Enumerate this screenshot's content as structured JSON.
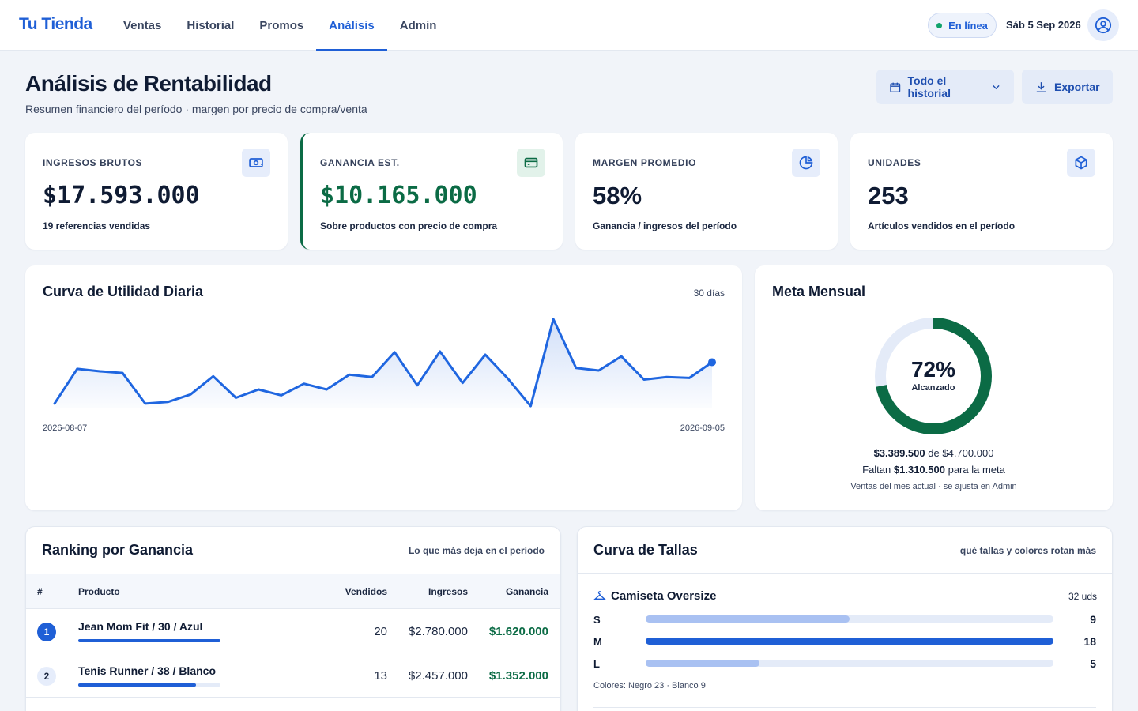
{
  "header": {
    "brand": "Tu Tienda",
    "nav": [
      {
        "label": "Ventas"
      },
      {
        "label": "Historial"
      },
      {
        "label": "Promos"
      },
      {
        "label": "Análisis"
      },
      {
        "label": "Admin"
      }
    ],
    "status": "En línea",
    "date": "Sáb 5 Sep 2026"
  },
  "page": {
    "title": "Análisis de Rentabilidad",
    "subtitle": "Resumen financiero del período · margen por precio de compra/venta",
    "range_button": "Todo el historial",
    "export_button": "Exportar"
  },
  "kpis": [
    {
      "label": "INGRESOS BRUTOS",
      "value": "$17.593.000",
      "note": "19 referencias vendidas"
    },
    {
      "label": "GANANCIA EST.",
      "value": "$10.165.000",
      "note": "Sobre productos con precio de compra"
    },
    {
      "label": "MARGEN PROMEDIO",
      "value": "58%",
      "note": "Ganancia / ingresos del período"
    },
    {
      "label": "UNIDADES",
      "value": "253",
      "note": "Artículos vendidos en el período"
    }
  ],
  "chart": {
    "title": "Curva de Utilidad Diaria",
    "period": "30 días",
    "start_label": "2026-08-07",
    "end_label": "2026-09-05"
  },
  "chart_data": {
    "type": "area",
    "x": [
      "2026-08-07",
      "2026-08-08",
      "2026-08-09",
      "2026-08-10",
      "2026-08-11",
      "2026-08-12",
      "2026-08-13",
      "2026-08-14",
      "2026-08-15",
      "2026-08-16",
      "2026-08-17",
      "2026-08-18",
      "2026-08-19",
      "2026-08-20",
      "2026-08-21",
      "2026-08-22",
      "2026-08-23",
      "2026-08-24",
      "2026-08-25",
      "2026-08-26",
      "2026-08-27",
      "2026-08-28",
      "2026-08-29",
      "2026-08-30",
      "2026-08-31",
      "2026-09-01",
      "2026-09-02",
      "2026-09-03",
      "2026-09-04",
      "2026-09-05"
    ],
    "values": [
      3,
      45,
      42,
      40,
      3,
      5,
      14,
      36,
      10,
      20,
      13,
      27,
      20,
      38,
      35,
      65,
      25,
      66,
      28,
      62,
      33,
      0,
      105,
      46,
      43,
      60,
      32,
      35,
      34,
      53
    ],
    "xlabel": "",
    "ylabel": "",
    "grid": false,
    "legend": "none"
  },
  "goal": {
    "title": "Meta Mensual",
    "percent": 72,
    "percent_label": "72%",
    "sub": "Alcanzado",
    "current": "$3.389.500",
    "of_word": "de",
    "target": "$4.700.000",
    "remaining_prefix": "Faltan",
    "remaining": "$1.310.500",
    "remaining_suffix": "para la meta",
    "note": "Ventas del mes actual · se ajusta en Admin"
  },
  "ranking": {
    "title": "Ranking por Ganancia",
    "hint": "Lo que más deja en el período",
    "columns": [
      "#",
      "Producto",
      "Vendidos",
      "Ingresos",
      "Ganancia"
    ],
    "rows": [
      {
        "rank": "1",
        "product": "Jean Mom Fit / 30 / Azul",
        "sold": "20",
        "revenue": "$2.780.000",
        "profit": "$1.620.000",
        "share": 1.0
      },
      {
        "rank": "2",
        "product": "Tenis Runner / 38 / Blanco",
        "sold": "13",
        "revenue": "$2.457.000",
        "profit": "$1.352.000",
        "share": 0.83
      }
    ]
  },
  "sizes": {
    "title": "Curva de Tallas",
    "hint": "qué tallas y colores rotan más",
    "product": "Camiseta Oversize",
    "units": "32 uds",
    "rows": [
      {
        "size": "S",
        "count": "9",
        "fraction": 0.5
      },
      {
        "size": "M",
        "count": "18",
        "fraction": 1.0
      },
      {
        "size": "L",
        "count": "5",
        "fraction": 0.28
      }
    ],
    "colors": "Colores: Negro 23 · Blanco 9"
  },
  "colors": {
    "accent": "#1f5fd6",
    "positive": "#0b6b45",
    "online": "#11a36b"
  }
}
